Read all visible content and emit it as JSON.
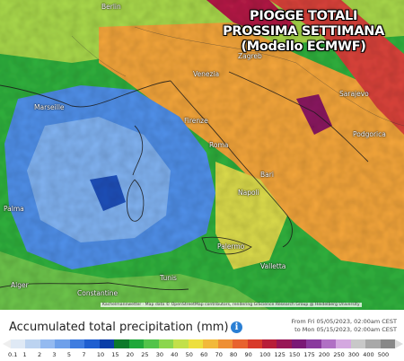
{
  "title": {
    "line1": "PIOGGE TOTALI",
    "line2": "PROSSIMA SETTIMANA",
    "line3": "(Modello ECMWF)"
  },
  "cities": {
    "berlin": "Berlin",
    "marseille": "Marseille",
    "roma": "Roma",
    "napoli": "Napoli",
    "palermo": "Palermo",
    "bari": "Bari",
    "sarajevo": "Sarajevo",
    "podgorica": "Podgorica",
    "zagreb": "Zagreb",
    "venezia": "Venezia",
    "firenze": "Firenze",
    "palma": "Palma",
    "tunis": "Tunis",
    "alger": "Alger",
    "constantine": "Constantine",
    "valletta": "Valletta"
  },
  "attribution": "Kachelmannwetter · Map data © OpenStreetMap contributors, rendering GIScience Research Group @ Heidelberg University",
  "legend": {
    "title": "Accumulated total precipitation (mm)",
    "info_icon": "info-icon",
    "range_from": "From Fri 05/05/2023, 02:00am CEST",
    "range_to": "to Mon 05/15/2023, 02:00am CEST",
    "ticks": [
      "0.1",
      "1",
      "2",
      "3",
      "5",
      "7",
      "10",
      "15",
      "20",
      "25",
      "30",
      "40",
      "50",
      "60",
      "70",
      "80",
      "90",
      "100",
      "125",
      "150",
      "175",
      "200",
      "250",
      "300",
      "400",
      "500"
    ],
    "colors": [
      "#dfe9f5",
      "#bcd3f0",
      "#94baf0",
      "#6ea0ea",
      "#3f7de0",
      "#1f5fd0",
      "#0a3ea8",
      "#0c7a2a",
      "#20a83a",
      "#52c44a",
      "#8bd64e",
      "#c2e04a",
      "#eddf3e",
      "#f2b93a",
      "#ee8f34",
      "#e8632e",
      "#d83a2a",
      "#b81e38",
      "#981656",
      "#7a1876",
      "#8a3a9e",
      "#b070c4",
      "#d4a8e0",
      "#c8c8c8",
      "#a8a8a8",
      "#888888"
    ]
  }
}
